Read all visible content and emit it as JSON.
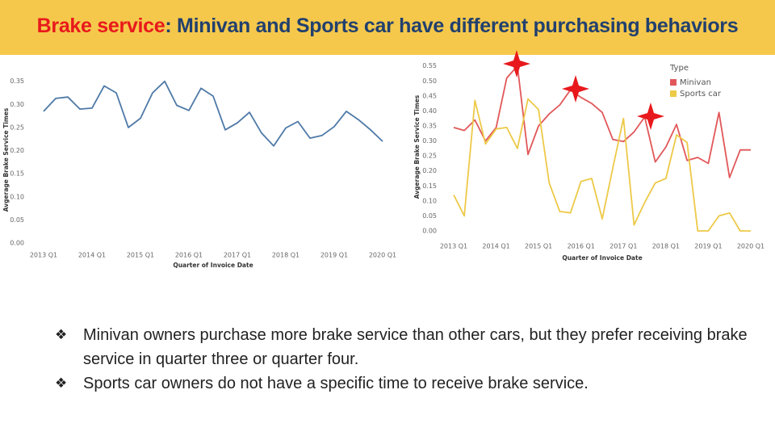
{
  "header": {
    "title_highlight": "Brake service",
    "title_rest": ": Minivan and Sports car have different purchasing behaviors"
  },
  "chart_data": [
    {
      "type": "line",
      "xlabel": "Quarter of Invoice Date",
      "ylabel": "Avgerage Brake Service Times",
      "categories": [
        "2013 Q1",
        null,
        null,
        null,
        "2014 Q1",
        null,
        null,
        null,
        "2015 Q1",
        null,
        null,
        null,
        "2016 Q1",
        null,
        null,
        null,
        "2017 Q1",
        null,
        null,
        null,
        "2018 Q1",
        null,
        null,
        null,
        "2019 Q1",
        null,
        null,
        null,
        "2020 Q1"
      ],
      "values": [
        0.285,
        0.313,
        0.316,
        0.29,
        0.292,
        0.34,
        0.325,
        0.25,
        0.27,
        0.325,
        0.35,
        0.298,
        0.287,
        0.335,
        0.318,
        0.245,
        0.26,
        0.283,
        0.238,
        0.21,
        0.249,
        0.263,
        0.227,
        0.233,
        0.252,
        0.285,
        0.267,
        0.245,
        0.22
      ],
      "color": "#4e79a7",
      "ylim": [
        0,
        0.36
      ],
      "yticks": [
        {
          "value": 0,
          "label": "0.00"
        },
        {
          "value": 0.05,
          "label": "0.05"
        },
        {
          "value": 0.1,
          "label": "0.10"
        },
        {
          "value": 0.15,
          "label": "0.15"
        },
        {
          "value": 0.2,
          "label": "0.20"
        },
        {
          "value": 0.25,
          "label": "0.25"
        },
        {
          "value": 0.3,
          "label": "0.30"
        },
        {
          "value": 0.35,
          "label": "0.35"
        }
      ]
    },
    {
      "type": "line",
      "xlabel": "Quarter of Invoice Date",
      "ylabel": "Avgerage Brake Service Times",
      "legend_title": "Type",
      "categories": [
        "2013 Q1",
        null,
        null,
        null,
        "2014 Q1",
        null,
        null,
        null,
        "2015 Q1",
        null,
        null,
        null,
        "2016 Q1",
        null,
        null,
        null,
        "2017 Q1",
        null,
        null,
        null,
        "2018 Q1",
        null,
        null,
        null,
        "2019 Q1",
        null,
        null,
        null,
        "2020 Q1"
      ],
      "series": [
        {
          "name": "Minivan",
          "color": "#e15759",
          "values": [
            0.345,
            0.335,
            0.37,
            0.3,
            0.345,
            0.51,
            0.55,
            0.255,
            0.35,
            0.39,
            0.42,
            0.47,
            0.445,
            0.425,
            0.395,
            0.305,
            0.298,
            0.33,
            0.38,
            0.23,
            0.28,
            0.355,
            0.235,
            0.245,
            0.225,
            0.395,
            0.178,
            0.27,
            0.27
          ]
        },
        {
          "name": "Sports car",
          "color": "#edc948",
          "values": [
            0.12,
            0.05,
            0.435,
            0.29,
            0.34,
            0.345,
            0.275,
            0.44,
            0.405,
            0.16,
            0.065,
            0.06,
            0.165,
            0.175,
            0.04,
            0.21,
            0.375,
            0.02,
            0.095,
            0.16,
            0.175,
            0.32,
            0.295,
            0.0,
            0.0,
            0.05,
            0.06,
            0.0,
            0.0
          ]
        }
      ],
      "ylim": [
        0,
        0.56
      ],
      "yticks": [
        {
          "value": 0,
          "label": "0.00"
        },
        {
          "value": 0.05,
          "label": "0.05"
        },
        {
          "value": 0.1,
          "label": "0.10"
        },
        {
          "value": 0.15,
          "label": "0.15"
        },
        {
          "value": 0.2,
          "label": "0.20"
        },
        {
          "value": 0.25,
          "label": "0.25"
        },
        {
          "value": 0.3,
          "label": "0.30"
        },
        {
          "value": 0.35,
          "label": "0.35"
        },
        {
          "value": 0.4,
          "label": "0.40"
        },
        {
          "value": 0.45,
          "label": "0.45"
        },
        {
          "value": 0.5,
          "label": "0.50"
        },
        {
          "value": 0.55,
          "label": "0.55"
        }
      ]
    }
  ],
  "bullets": [
    "Minivan owners purchase more brake service than other cars, but they prefer receiving brake service in quarter three or quarter four.",
    "Sports car owners do not have a specific time to receive brake service."
  ]
}
